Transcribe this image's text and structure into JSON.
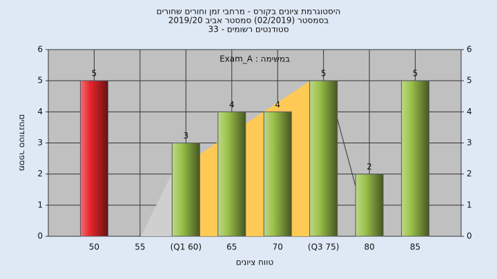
{
  "chart_data": {
    "type": "bar",
    "title": "היסטוגרמת ציונים בקורס - מרחבי זמן וחורים שחורים",
    "subtitle": "בסמסטר  (02/2019)  סמסטר אביב 2019/20",
    "subtitle2": "33 - סטודנטים רשומים",
    "annotation": "Exam_A : במשימה",
    "x_label": "טווח ציונים",
    "y_label": "מספר סטודנטים",
    "categories": [
      "50",
      "55",
      "(Q1 60)",
      "65",
      "70",
      "(Q3 75)",
      "80",
      "85"
    ],
    "values": [
      5,
      null,
      3,
      4,
      4,
      5,
      2,
      5
    ],
    "colors": [
      "#e8262b",
      null,
      "#9bc24a",
      "#9bc24a",
      "#9bc24a",
      "#9bc24a",
      "#9bc24a",
      "#9bc24a"
    ],
    "ylim": [
      0,
      6
    ],
    "yticks": [
      0,
      1,
      2,
      3,
      4,
      5,
      6
    ],
    "grid": true
  }
}
